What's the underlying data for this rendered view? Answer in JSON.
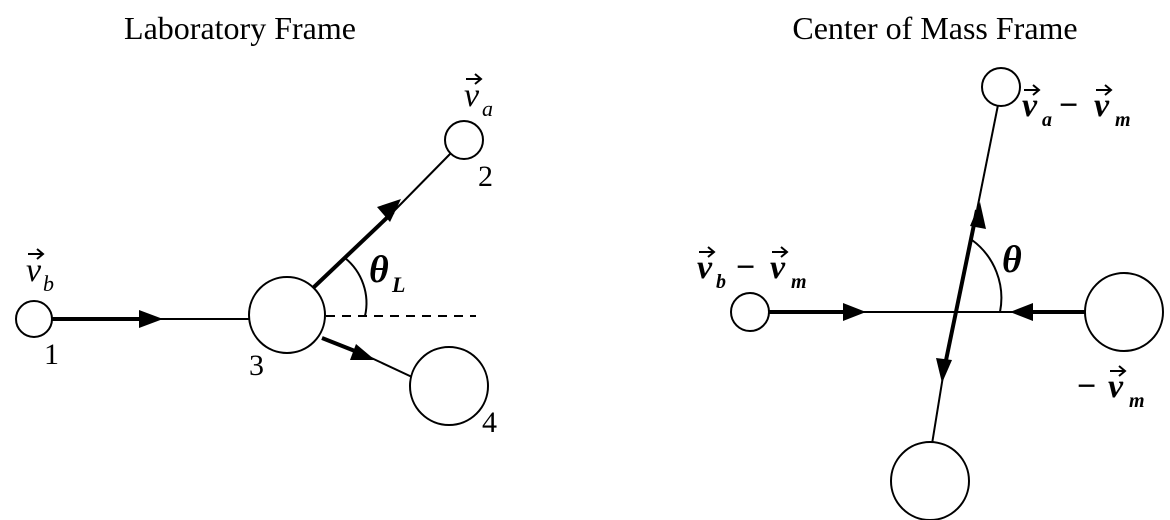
{
  "lab_frame": {
    "title": "Laboratory Frame",
    "particle_labels": {
      "p1": "1",
      "p2": "2",
      "p3": "3",
      "p4": "4"
    },
    "velocity_labels": {
      "vb": {
        "base": "v",
        "sub": "b"
      },
      "va": {
        "base": "v",
        "sub": "a"
      }
    },
    "angle_label": {
      "base": "θ",
      "sub": "L"
    }
  },
  "cm_frame": {
    "title": "Center of Mass Frame",
    "velocity_labels": {
      "va_minus_vm": {
        "base1": "v",
        "sub1": "a",
        "op": " − ",
        "base2": "v",
        "sub2": "m"
      },
      "vb_minus_vm": {
        "base1": "v",
        "sub1": "b",
        "op": " − ",
        "base2": "v",
        "sub2": "m"
      },
      "minus_vm": {
        "op": "−",
        "base": "v",
        "sub": "m"
      }
    },
    "angle_label": "θ"
  },
  "vector_arrow_glyph": "⃗"
}
